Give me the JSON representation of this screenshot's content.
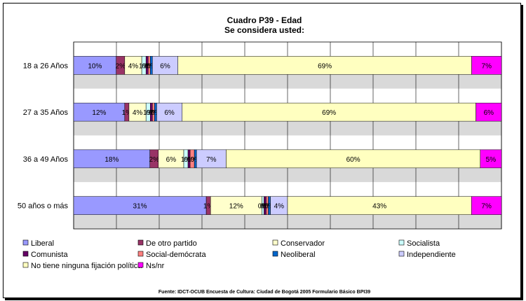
{
  "chart_data": {
    "type": "bar",
    "stacked": true,
    "orientation": "horizontal",
    "percent_stacked": true,
    "title": "Cuadro P39 - Edad",
    "subtitle": "Se considera usted:",
    "source": "Fuente: IDCT-OCUB Encuesta de Cultura: Ciudad de Bogotá 2005 Formulario Básico BPI39",
    "categories": [
      "18 a 26 Años",
      "27 a 35 Años",
      "36 a 49 Años",
      "50 años o más"
    ],
    "xlim": [
      0,
      100
    ],
    "grid": true,
    "legend_position": "bottom",
    "series": [
      {
        "name": "Liberal",
        "color": "#9999ff",
        "values": [
          10,
          12,
          18,
          31
        ],
        "labels": [
          "10%",
          "12%",
          "18%",
          "31%"
        ]
      },
      {
        "name": "De otro partido",
        "color": "#993366",
        "values": [
          2,
          1,
          2,
          1
        ],
        "labels": [
          "2%",
          "1%",
          "2%",
          "1%"
        ]
      },
      {
        "name": "Conservador",
        "color": "#ffffcc",
        "values": [
          4,
          4,
          6,
          12
        ],
        "labels": [
          "4%",
          "4%",
          "6%",
          "12%"
        ]
      },
      {
        "name": "Socialista",
        "color": "#ccffff",
        "values": [
          1,
          1,
          1,
          0.5
        ],
        "labels": [
          "1%",
          "1%",
          "1%",
          "0%"
        ]
      },
      {
        "name": "Comunista",
        "color": "#660066",
        "values": [
          0.5,
          0.5,
          0.5,
          0.5
        ],
        "labels": [
          "0%",
          "0%",
          "0%",
          "0%"
        ]
      },
      {
        "name": "Social-demócrata",
        "color": "#ff8080",
        "values": [
          0.5,
          0.5,
          1,
          0.5
        ],
        "labels": [
          "0%",
          "0%",
          "1%",
          "0%"
        ]
      },
      {
        "name": "Neoliberal",
        "color": "#0066cc",
        "values": [
          0.5,
          0.5,
          0.5,
          0.5
        ],
        "labels": [
          "0%",
          "0%",
          "0%",
          "0%"
        ]
      },
      {
        "name": "Independiente",
        "color": "#ccccff",
        "values": [
          6,
          6,
          7,
          4
        ],
        "labels": [
          "6%",
          "6%",
          "7%",
          "4%"
        ]
      },
      {
        "name": "No tiene ninguna fijación política",
        "color": "#ffffc0",
        "values": [
          69,
          69,
          60,
          43
        ],
        "labels": [
          "69%",
          "69%",
          "60%",
          "43%"
        ]
      },
      {
        "name": "Ns/nr",
        "color": "#ff00ff",
        "values": [
          7,
          6,
          5,
          7
        ],
        "labels": [
          "7%",
          "6%",
          "5%",
          "7%"
        ]
      }
    ]
  }
}
